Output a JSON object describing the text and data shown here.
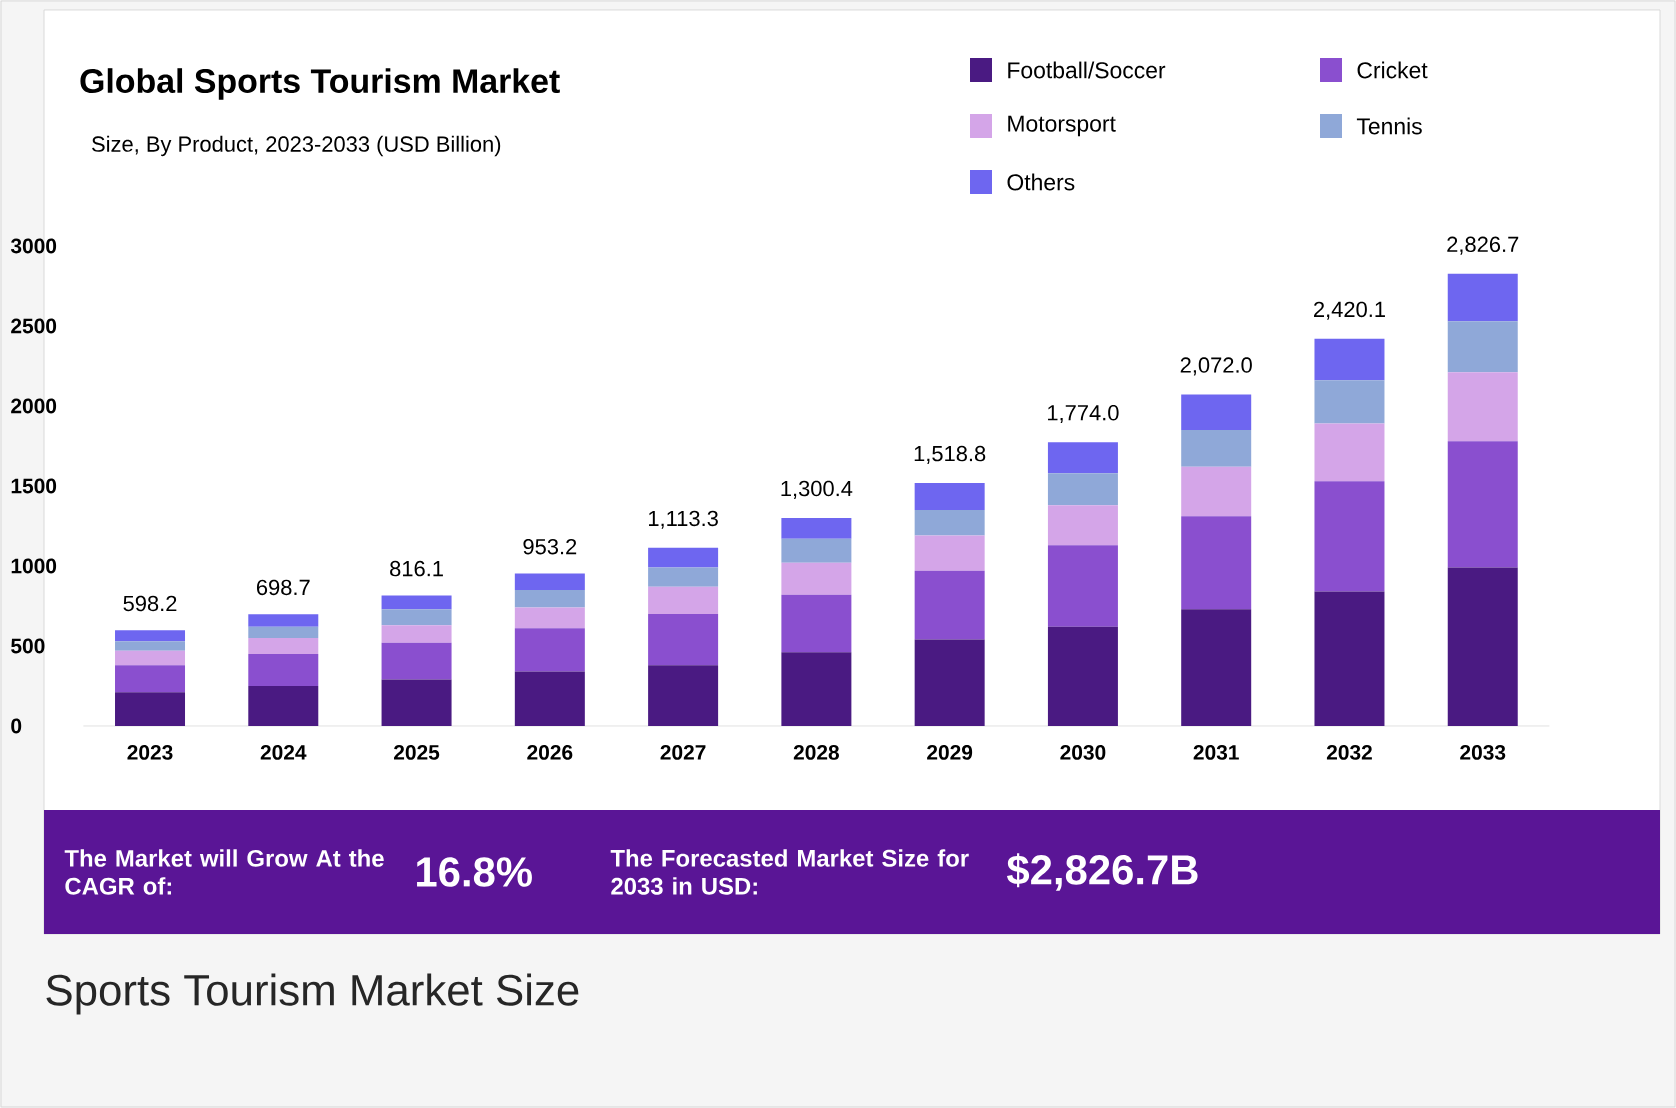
{
  "chart_data": {
    "type": "bar",
    "stacked": true,
    "title": "Global Sports Tourism Market",
    "subtitle": "Size, By Product, 2023-2033 (USD Billion)",
    "categories": [
      "2023",
      "2024",
      "2025",
      "2026",
      "2027",
      "2028",
      "2029",
      "2030",
      "2031",
      "2032",
      "2033"
    ],
    "series": [
      {
        "name": "Football/Soccer",
        "color": "#4a1a82",
        "values": [
          210,
          250,
          290,
          340,
          380,
          460,
          540,
          620,
          730,
          840,
          990
        ]
      },
      {
        "name": "Cricket",
        "color": "#8a4fcf",
        "values": [
          170,
          200,
          230,
          270,
          320,
          360,
          430,
          510,
          580,
          690,
          790
        ]
      },
      {
        "name": "Motorsport",
        "color": "#d4a5e8",
        "values": [
          90,
          100,
          110,
          130,
          170,
          200,
          220,
          250,
          310,
          360,
          430
        ]
      },
      {
        "name": "Tennis",
        "color": "#8fa8d8",
        "values": [
          60,
          70,
          100,
          110,
          120,
          150,
          160,
          200,
          230,
          270,
          320
        ]
      },
      {
        "name": "Others",
        "color": "#6e66f0",
        "values": [
          68.2,
          78.7,
          86.1,
          103.2,
          123.3,
          130.4,
          168.8,
          194,
          222,
          260.1,
          296.7
        ]
      }
    ],
    "ylim": [
      0,
      3000
    ],
    "yticks": [
      0,
      500,
      1000,
      1500,
      2000,
      2500,
      3000
    ],
    "totals": [
      "598.2",
      "698.7",
      "816.1",
      "953.2",
      "1,113.3",
      "1,300.4",
      "1,518.8",
      "1,774.0",
      "2,072.0",
      "2,420.1",
      "2,826.7"
    ],
    "legend": "top right",
    "annotations": [
      "The Market will Grow At the CAGR of:",
      "16.8%",
      "The Forecasted Market Size for 2033 in USD:",
      "$2,826.7B",
      "Sports Tourism Market Size"
    ]
  }
}
